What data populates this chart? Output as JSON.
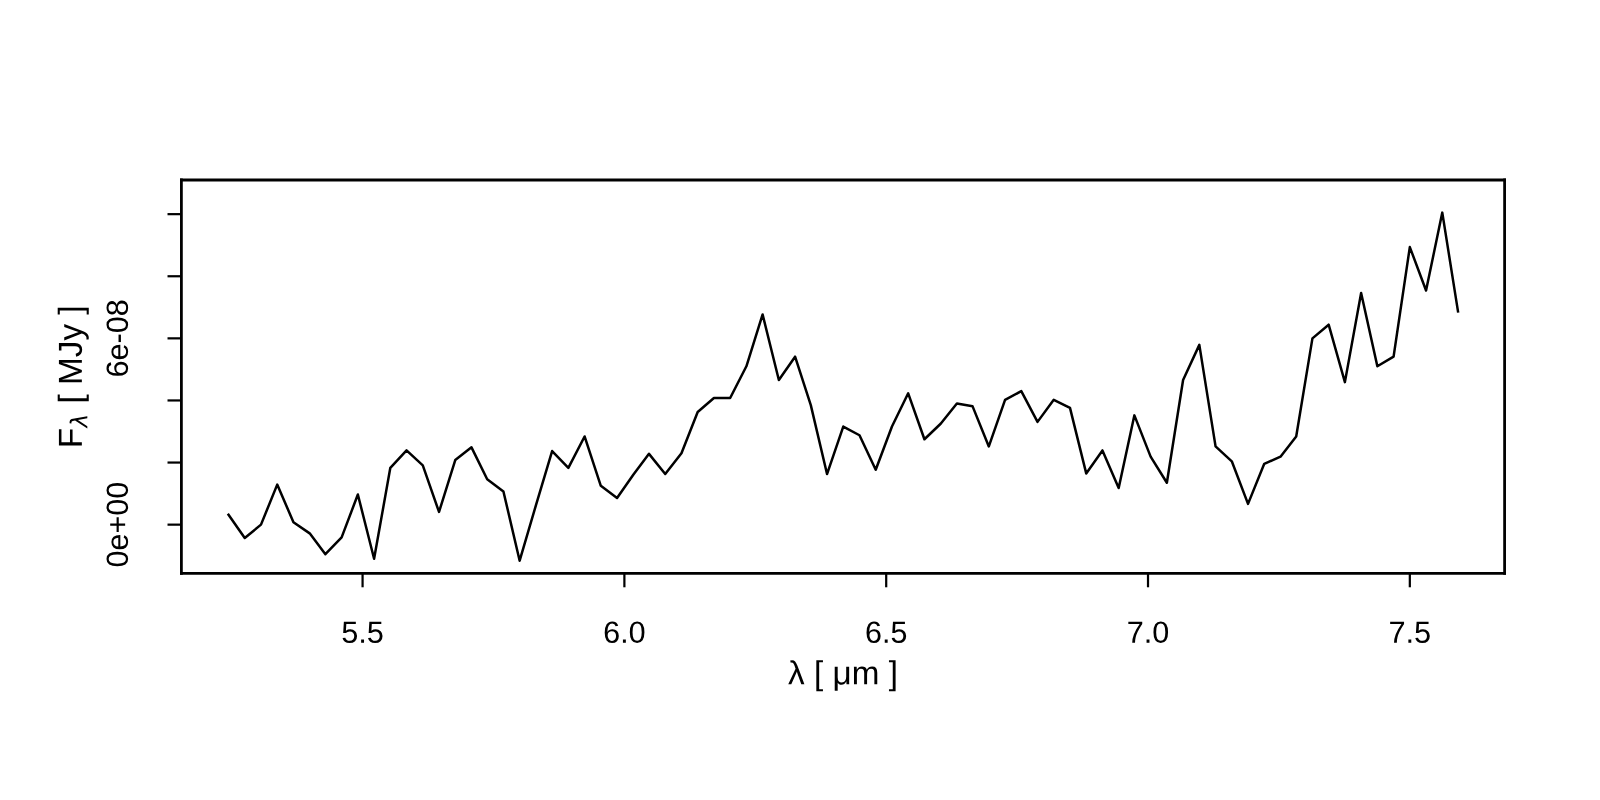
{
  "chart_data": {
    "type": "line",
    "xlabel": "λ [ μm ]",
    "ylabel": "F$_{λ}$ [ MJy ]",
    "x": [
      5.244,
      5.275,
      5.306,
      5.337,
      5.368,
      5.399,
      5.429,
      5.46,
      5.491,
      5.522,
      5.553,
      5.584,
      5.615,
      5.646,
      5.677,
      5.708,
      5.738,
      5.769,
      5.8,
      5.831,
      5.862,
      5.893,
      5.924,
      5.955,
      5.986,
      6.017,
      6.047,
      6.078,
      6.109,
      6.14,
      6.171,
      6.202,
      6.233,
      6.264,
      6.295,
      6.326,
      6.356,
      6.387,
      6.418,
      6.449,
      6.48,
      6.511,
      6.542,
      6.573,
      6.604,
      6.635,
      6.665,
      6.696,
      6.727,
      6.758,
      6.789,
      6.82,
      6.851,
      6.882,
      6.913,
      6.944,
      6.974,
      7.005,
      7.036,
      7.067,
      7.098,
      7.129,
      7.16,
      7.191,
      7.222,
      7.253,
      7.283,
      7.314,
      7.345,
      7.376,
      7.407,
      7.438,
      7.469,
      7.5,
      7.531,
      7.562,
      7.592
    ],
    "series": [
      {
        "color": "#000000",
        "values": [
          3.2e-09,
          -4.3e-09,
          0.0,
          1.29e-08,
          8e-10,
          -2.8e-09,
          -9.5e-09,
          -4.1e-09,
          9.7e-09,
          -1.1e-08,
          1.83e-08,
          2.39e-08,
          1.91e-08,
          4.1e-09,
          2.08e-08,
          2.49e-08,
          1.46e-08,
          1.07e-08,
          -1.16e-08,
          6.2e-09,
          2.37e-08,
          1.83e-08,
          2.84e-08,
          1.25e-08,
          8.6e-09,
          1.61e-08,
          2.28e-08,
          1.63e-08,
          2.3e-08,
          3.63e-08,
          4.08e-08,
          4.08e-08,
          5.1e-08,
          6.77e-08,
          4.66e-08,
          5.41e-08,
          3.85e-08,
          1.63e-08,
          3.16e-08,
          2.88e-08,
          1.77e-08,
          3.16e-08,
          4.23e-08,
          2.75e-08,
          3.25e-08,
          3.9e-08,
          3.81e-08,
          2.52e-08,
          4.02e-08,
          4.3e-08,
          3.31e-08,
          4.02e-08,
          3.76e-08,
          1.65e-08,
          2.39e-08,
          1.18e-08,
          3.52e-08,
          2.19e-08,
          1.35e-08,
          4.66e-08,
          5.79e-08,
          2.52e-08,
          2.04e-08,
          6.7e-09,
          1.96e-08,
          2.19e-08,
          2.84e-08,
          6e-08,
          6.44e-08,
          4.59e-08,
          7.46e-08,
          5.1e-08,
          5.41e-08,
          8.94e-08,
          7.54e-08,
          1.005e-07,
          6.87e-08
        ]
      }
    ],
    "xlim": [
      5.154,
      7.681
    ],
    "ylim": [
      -1.57e-08,
      1.11e-07
    ],
    "xticks": [
      {
        "value": 5.5,
        "label": "5.5"
      },
      {
        "value": 6.0,
        "label": "6.0"
      },
      {
        "value": 6.5,
        "label": "6.5"
      },
      {
        "value": 7.0,
        "label": "7.0"
      },
      {
        "value": 7.5,
        "label": "7.5"
      }
    ],
    "yticks": [
      {
        "value": 0,
        "label": "0e+00"
      },
      {
        "value": 2e-08,
        "label": null
      },
      {
        "value": 4e-08,
        "label": null
      },
      {
        "value": 6e-08,
        "label": "6e-08"
      },
      {
        "value": 8e-08,
        "label": null
      },
      {
        "value": 1e-07,
        "label": null
      }
    ],
    "grid": false,
    "legend": false,
    "marker": "none",
    "line_style": "solid"
  }
}
